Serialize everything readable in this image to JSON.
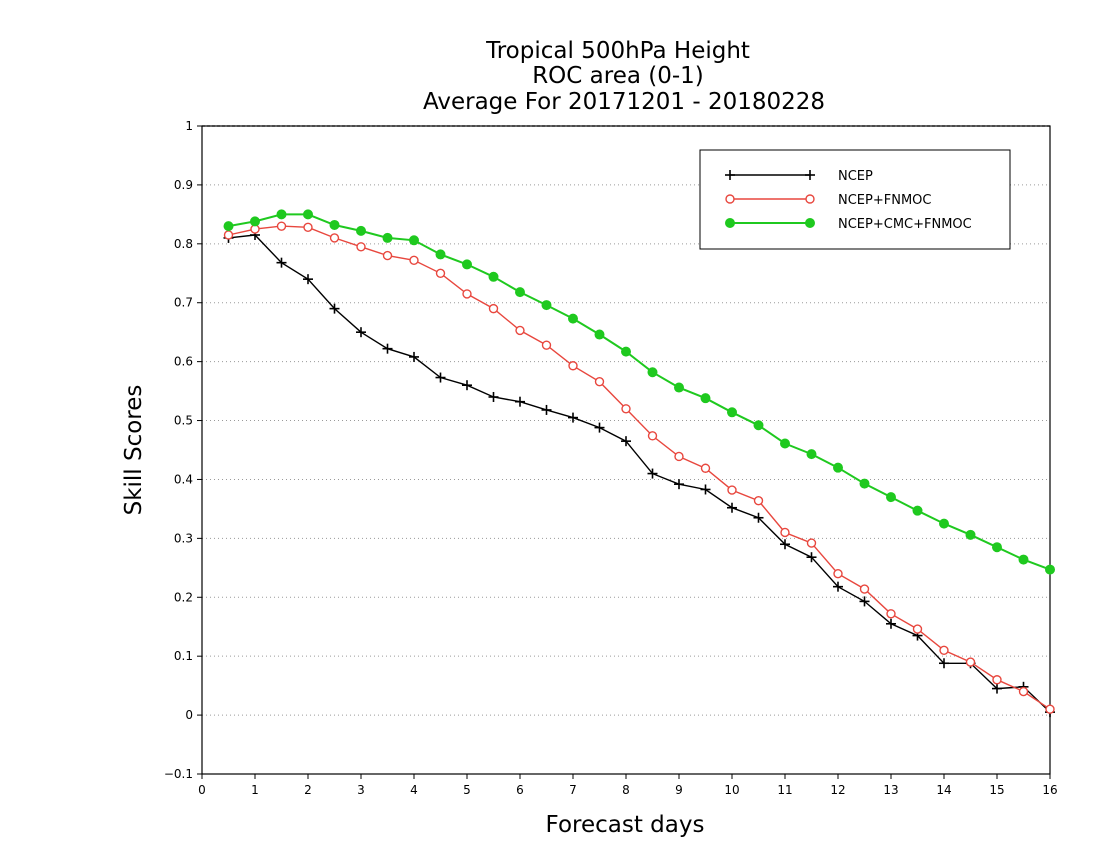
{
  "chart_data": {
    "type": "line",
    "title_lines": [
      "Tropical 500hPa Height",
      "ROC area (0-1)",
      "Average For 20171201 - 20180228"
    ],
    "xlabel": "Forecast days",
    "ylabel": "Skill Scores",
    "xlim": [
      0,
      16
    ],
    "ylim": [
      -0.1,
      1
    ],
    "x_ticks": [
      "0",
      "1",
      "2",
      "3",
      "4",
      "5",
      "6",
      "7",
      "8",
      "9",
      "10",
      "11",
      "12",
      "13",
      "14",
      "15",
      "16"
    ],
    "y_ticks": [
      "−0.1",
      "0",
      "0.1",
      "0.2",
      "0.3",
      "0.4",
      "0.5",
      "0.6",
      "0.7",
      "0.8",
      "0.9",
      "1"
    ],
    "grid": true,
    "legend_position": "top-right",
    "x": [
      0.5,
      1,
      1.5,
      2,
      2.5,
      3,
      3.5,
      4,
      4.5,
      5,
      5.5,
      6,
      6.5,
      7,
      7.5,
      8,
      8.5,
      9,
      9.5,
      10,
      10.5,
      11,
      11.5,
      12,
      12.5,
      13,
      13.5,
      14,
      14.5,
      15,
      15.5,
      16
    ],
    "series": [
      {
        "name": "NCEP",
        "color": "#000000",
        "marker": "plus",
        "values": [
          0.81,
          0.815,
          0.768,
          0.74,
          0.69,
          0.65,
          0.622,
          0.608,
          0.573,
          0.56,
          0.54,
          0.532,
          0.518,
          0.505,
          0.488,
          0.465,
          0.41,
          0.392,
          0.383,
          0.352,
          0.335,
          0.29,
          0.268,
          0.218,
          0.193,
          0.155,
          0.135,
          0.088,
          0.088,
          0.045,
          0.048,
          0.005
        ]
      },
      {
        "name": "NCEP+FNMOC",
        "color": "#e8473e",
        "marker": "open-circle",
        "values": [
          0.815,
          0.825,
          0.83,
          0.828,
          0.81,
          0.795,
          0.78,
          0.772,
          0.75,
          0.715,
          0.69,
          0.653,
          0.628,
          0.593,
          0.566,
          0.52,
          0.474,
          0.439,
          0.419,
          0.382,
          0.364,
          0.31,
          0.292,
          0.24,
          0.214,
          0.172,
          0.146,
          0.11,
          0.09,
          0.06,
          0.04,
          0.01
        ]
      },
      {
        "name": "NCEP+CMC+FNMOC",
        "color": "#1fc91f",
        "marker": "filled-circle",
        "values": [
          0.83,
          0.838,
          0.85,
          0.85,
          0.832,
          0.822,
          0.81,
          0.806,
          0.782,
          0.765,
          0.744,
          0.718,
          0.696,
          0.673,
          0.646,
          0.617,
          0.582,
          0.556,
          0.538,
          0.514,
          0.492,
          0.461,
          0.443,
          0.42,
          0.393,
          0.37,
          0.347,
          0.325,
          0.306,
          0.285,
          0.264,
          0.247
        ]
      }
    ]
  }
}
